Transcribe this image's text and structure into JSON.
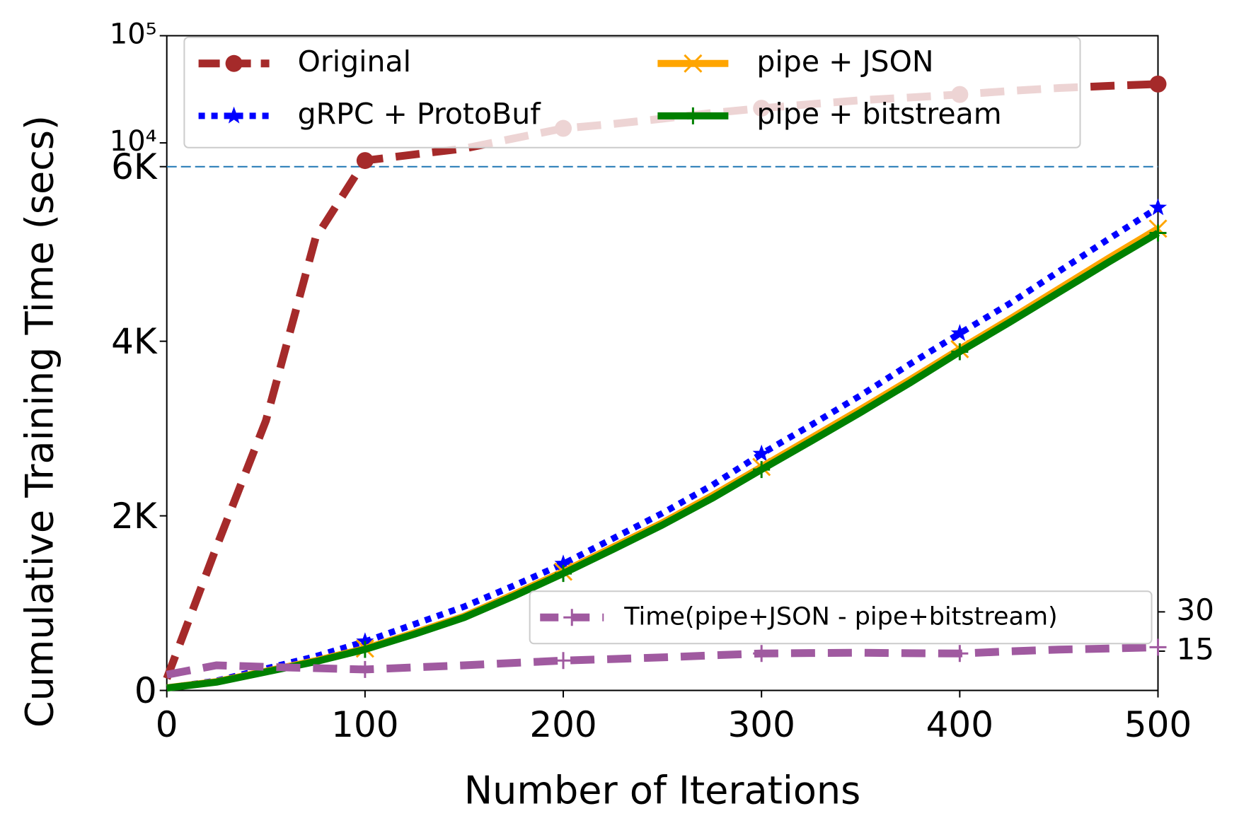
{
  "chart_data": {
    "type": "line",
    "xlabel": "Number of Iterations",
    "ylabel": "Cumulative Training Time (secs)",
    "x": [
      0,
      25,
      50,
      75,
      100,
      125,
      150,
      175,
      200,
      225,
      250,
      275,
      300,
      325,
      350,
      375,
      400,
      425,
      450,
      475,
      500
    ],
    "xlim": [
      0,
      500
    ],
    "xticks": [
      0,
      100,
      200,
      300,
      400,
      500
    ],
    "ylim": [
      0,
      100000
    ],
    "yscale": "linear-log",
    "ybreak": 6000,
    "yticks": [
      0,
      {
        "value": 2000,
        "label": "2K"
      },
      {
        "value": 4000,
        "label": "4K"
      },
      {
        "value": 6000,
        "label": "6K"
      },
      {
        "value": 10000,
        "label": "10⁴"
      },
      {
        "value": 100000,
        "label": "10⁵"
      }
    ],
    "y2lim": [
      0,
      250
    ],
    "y2ticks": [
      15,
      30
    ],
    "hline": {
      "value": 6000,
      "color": "#1f77b4"
    },
    "markevery": 100,
    "legend": "upper left",
    "y2legend": "lower right",
    "series": [
      {
        "name": "Original",
        "color": "#a52a2a",
        "linestyle": "dashed",
        "marker": "circle",
        "values": [
          136,
          1640,
          3090,
          5180,
          6840,
          7800,
          8860,
          11000,
          13660,
          15000,
          16800,
          19000,
          21050,
          23000,
          25000,
          26500,
          28300,
          30500,
          32500,
          34000,
          35400
        ]
      },
      {
        "name": "gRPC + ProtoBuf",
        "color": "#0000ff",
        "linestyle": "dotted",
        "marker": "star",
        "values": [
          30,
          110,
          250,
          390,
          560,
          760,
          960,
          1200,
          1450,
          1740,
          2030,
          2350,
          2710,
          3040,
          3380,
          3740,
          4090,
          4430,
          4800,
          5170,
          5530
        ]
      },
      {
        "name": "pipe + JSON",
        "color": "#ffa500",
        "linestyle": "solid",
        "marker": "x",
        "values": [
          30,
          100,
          220,
          340,
          480,
          660,
          850,
          1100,
          1360,
          1640,
          1920,
          2230,
          2560,
          2890,
          3220,
          3560,
          3910,
          4250,
          4600,
          4950,
          5290
        ]
      },
      {
        "name": "pipe + bitstream",
        "color": "#008000",
        "linestyle": "solid",
        "marker": "plus",
        "values": [
          28,
          95,
          212,
          330,
          470,
          645,
          835,
          1080,
          1340,
          1615,
          1895,
          2200,
          2530,
          2855,
          3185,
          3525,
          3880,
          4215,
          4560,
          4905,
          5240
        ]
      },
      {
        "name": "Time(pipe+JSON - pipe+bitstream)",
        "color": "#a05aa0",
        "linestyle": "dashed",
        "marker": "plus",
        "axis": "y2",
        "values": [
          6,
          9.6,
          9,
          8.5,
          8,
          8.8,
          9.6,
          10.5,
          11.4,
          12,
          12.6,
          13.4,
          14.1,
          14.3,
          14.4,
          14.2,
          14.1,
          14.9,
          15.6,
          16,
          16.5
        ]
      }
    ]
  }
}
